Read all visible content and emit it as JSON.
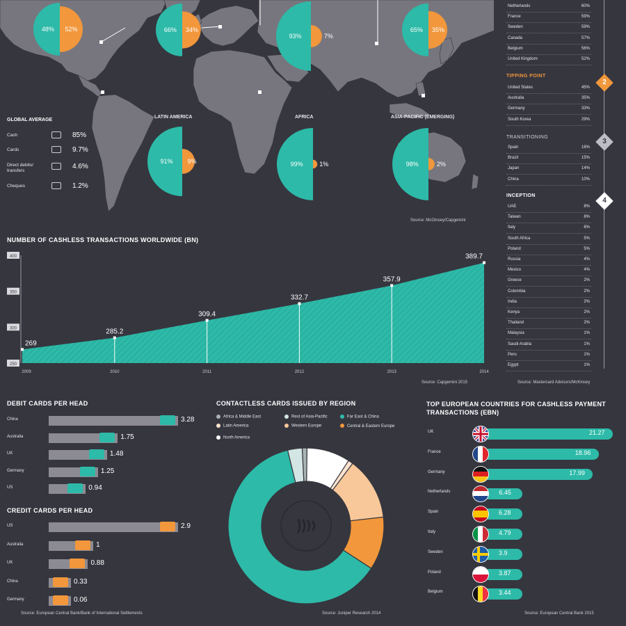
{
  "colors": {
    "teal": "#2dbaa8",
    "orange": "#f2973b",
    "background": "#36363f",
    "map": "#77767e",
    "bar_grey": "#8c8a92"
  },
  "map_pies": [
    {
      "region": "",
      "teal_pct": "48%",
      "orange_pct": "52%"
    },
    {
      "region": "",
      "teal_pct": "66%",
      "orange_pct": "34%"
    },
    {
      "region": "",
      "teal_pct": "93%",
      "orange_pct": "7%"
    },
    {
      "region": "",
      "teal_pct": "65%",
      "orange_pct": "35%"
    },
    {
      "region": "LATIN AMERICA",
      "teal_pct": "91%",
      "orange_pct": "9%"
    },
    {
      "region": "AFRICA",
      "teal_pct": "99%",
      "orange_pct": "1%"
    },
    {
      "region": "ASIA-PACIFIC (EMERGING)",
      "teal_pct": "98%",
      "orange_pct": "2%"
    }
  ],
  "global_average": {
    "title": "GLOBAL AVERAGE",
    "rows": [
      {
        "label": "Cash",
        "value": "85%",
        "icon": "cash-icon"
      },
      {
        "label": "Cards",
        "value": "9.7%",
        "icon": "card-icon"
      },
      {
        "label": "Direct debits/ transfers",
        "value": "4.6%",
        "icon": "transfer-icon"
      },
      {
        "label": "Cheques",
        "value": "1.2%",
        "icon": "cheque-icon"
      }
    ]
  },
  "map_source": "Source: McGinsey/Capgemini",
  "sidebar": {
    "group1": [
      {
        "name": "Netherlands",
        "value": "60%"
      },
      {
        "name": "France",
        "value": "59%"
      },
      {
        "name": "Sweden",
        "value": "59%"
      },
      {
        "name": "Canada",
        "value": "57%"
      },
      {
        "name": "Belgium",
        "value": "56%"
      },
      {
        "name": "United Kingdom",
        "value": "52%"
      }
    ],
    "group2_title": "TIPPING POINT",
    "group2_num": "2",
    "group2": [
      {
        "name": "United States",
        "value": "45%"
      },
      {
        "name": "Australia",
        "value": "35%"
      },
      {
        "name": "Germany",
        "value": "33%"
      },
      {
        "name": "South Korea",
        "value": "29%"
      }
    ],
    "group3_title": "TRANSITIONING",
    "group3_num": "3",
    "group3": [
      {
        "name": "Spain",
        "value": "16%"
      },
      {
        "name": "Brazil",
        "value": "15%"
      },
      {
        "name": "Japan",
        "value": "14%"
      },
      {
        "name": "China",
        "value": "10%"
      }
    ],
    "group4_title": "INCEPTION",
    "group4_num": "4",
    "group4": [
      {
        "name": "UAE",
        "value": "8%"
      },
      {
        "name": "Taiwan",
        "value": "8%"
      },
      {
        "name": "Italy",
        "value": "6%"
      },
      {
        "name": "South Africa",
        "value": "5%"
      },
      {
        "name": "Poland",
        "value": "5%"
      },
      {
        "name": "Russia",
        "value": "4%"
      },
      {
        "name": "Mexico",
        "value": "4%"
      },
      {
        "name": "Greece",
        "value": "2%"
      },
      {
        "name": "Colombia",
        "value": "2%"
      },
      {
        "name": "India",
        "value": "2%"
      },
      {
        "name": "Kenya",
        "value": "2%"
      },
      {
        "name": "Thailand",
        "value": "2%"
      },
      {
        "name": "Malaysia",
        "value": "1%"
      },
      {
        "name": "Saudi Arabia",
        "value": "1%"
      },
      {
        "name": "Peru",
        "value": "1%"
      },
      {
        "name": "Egypt",
        "value": "1%"
      }
    ],
    "source": "Source: Mastercard Advisors/McKinsey"
  },
  "chart_data": [
    {
      "type": "area",
      "title": "NUMBER OF CASHLESS TRANSACTIONS WORLDWIDE (BN)",
      "x": [
        "2009",
        "2010",
        "2011",
        "2012",
        "2013",
        "2014"
      ],
      "values": [
        269,
        285.2,
        309.4,
        332.7,
        357.9,
        389.7
      ],
      "value_labels": [
        "269",
        "285.2",
        "309.4",
        "332.7",
        "357.9",
        "389.7"
      ],
      "ylim": [
        250,
        400
      ],
      "yticks": [
        "250",
        "300",
        "350",
        "400"
      ],
      "grid": false,
      "source": "Source: Capgemini 2015"
    },
    {
      "type": "bar",
      "title": "DEBIT CARDS PER HEAD",
      "categories": [
        "China",
        "Australia",
        "UK",
        "Germany",
        "US"
      ],
      "values": [
        3.28,
        1.75,
        1.48,
        1.25,
        0.94
      ],
      "value_labels": [
        "3.28",
        "1.75",
        "1.48",
        "1.25",
        "0.94"
      ]
    },
    {
      "type": "bar",
      "title": "CREDIT CARDS PER HEAD",
      "categories": [
        "US",
        "Australia",
        "UK",
        "China",
        "Germany"
      ],
      "values": [
        2.9,
        1,
        0.88,
        0.33,
        0.06
      ],
      "value_labels": [
        "2.9",
        "1",
        "0.88",
        "0.33",
        "0.06"
      ],
      "source": "Source: European Central Bank/Bank of International Settlements"
    },
    {
      "type": "pie",
      "title": "CONTACTLESS CARDS ISSUED BY REGION",
      "categories": [
        "Africa & Middle East",
        "Rest of Asia-Pacific",
        "Far East & China",
        "Latin America",
        "Western Europe",
        "Central & Eastern Europe",
        "North America"
      ],
      "values": [
        1,
        3,
        62,
        1,
        13,
        11,
        9
      ],
      "legend_colors": [
        "#aab3b3",
        "#d3e6e4",
        "#2dbaa8",
        "#fde4cf",
        "#f8c89a",
        "#f2973b",
        "#ffffff"
      ],
      "source": "Source: Juniper Research 2014"
    },
    {
      "type": "bar",
      "title": "TOP EUROPEAN COUNTRIES FOR CASHLESS PAYMENT TRANSACTIONS (EBN)",
      "categories": [
        "UK",
        "France",
        "Germany",
        "Netherlands",
        "Spain",
        "Italy",
        "Sweden",
        "Poland",
        "Belgium"
      ],
      "values": [
        21.27,
        18.96,
        17.99,
        6.45,
        6.28,
        4.79,
        3.9,
        3.87,
        3.44
      ],
      "value_labels": [
        "21.27",
        "18.96",
        "17.99",
        "6.45",
        "6.28",
        "4.79",
        "3.9",
        "3.87",
        "3.44"
      ],
      "flags": [
        "uk-flag-icon",
        "france-flag-icon",
        "germany-flag-icon",
        "netherlands-flag-icon",
        "spain-flag-icon",
        "italy-flag-icon",
        "sweden-flag-icon",
        "poland-flag-icon",
        "belgium-flag-icon"
      ],
      "source": "Source: European Central Bank 2015"
    }
  ]
}
